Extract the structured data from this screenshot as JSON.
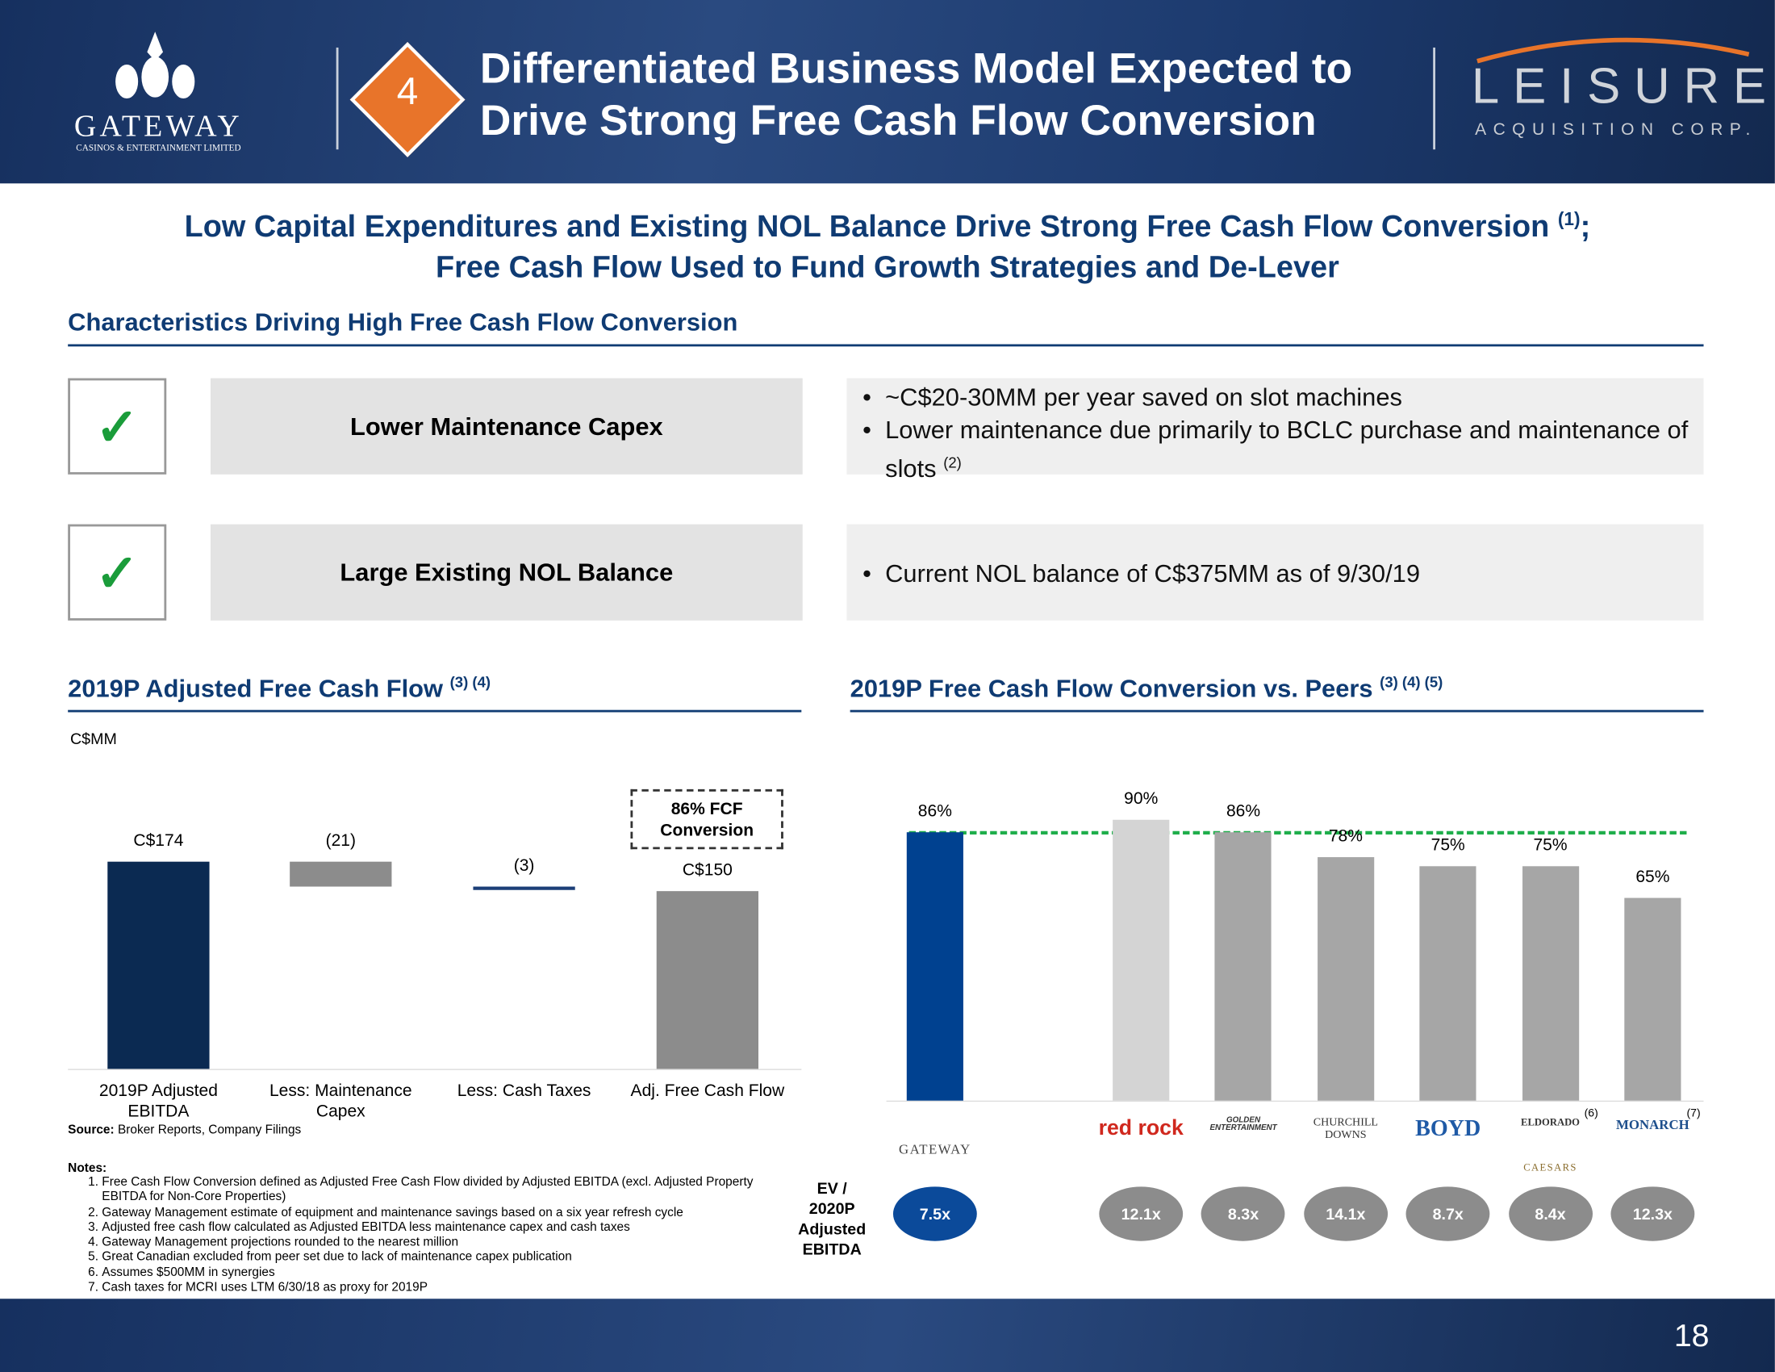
{
  "header": {
    "company": "GATEWAY",
    "company_tagline": "CASINOS & ENTERTAINMENT LIMITED",
    "section_number": "4",
    "title_line1": "Differentiated Business Model Expected to",
    "title_line2": "Drive Strong Free Cash Flow Conversion",
    "partner": "LEISURE",
    "partner_tagline": "ACQUISITION CORP."
  },
  "headline": {
    "line1": "Low Capital Expenditures and Existing NOL Balance Drive Strong Free Cash Flow Conversion",
    "line1_note": "(1)",
    "line1_end": ";",
    "line2": "Free Cash Flow Used to Fund Growth Strategies and De-Lever"
  },
  "characteristics": {
    "title": "Characteristics Driving High Free Cash Flow Conversion",
    "rows": [
      {
        "label": "Lower Maintenance Capex",
        "bullets": [
          "~C$20-30MM per year saved on slot machines",
          "Lower maintenance due primarily to BCLC purchase and maintenance of slots"
        ],
        "note": "(2)"
      },
      {
        "label": "Large Existing NOL Balance",
        "bullets": [
          "Current NOL balance of C$375MM as of 9/30/19"
        ]
      }
    ]
  },
  "chart_data": [
    {
      "type": "waterfall",
      "title": "2019P Adjusted Free Cash Flow",
      "title_note": "(3) (4)",
      "unit": "C$MM",
      "categories": [
        "2019P Adjusted EBITDA",
        "Less: Maintenance Capex",
        "Less: Cash Taxes",
        "Adj. Free Cash Flow"
      ],
      "values": [
        174,
        -21,
        -3,
        150
      ],
      "value_labels": [
        "C$174",
        "(21)",
        "(3)",
        "C$150"
      ],
      "colors": [
        "#0b2a52",
        "#8c8c8c",
        "#1c3f78",
        "#8c8c8c"
      ],
      "annotation": "86% FCF Conversion"
    },
    {
      "type": "bar",
      "title": "2019P Free Cash Flow Conversion vs. Peers",
      "title_note": "(3) (4) (5)",
      "categories": [
        "GATEWAY",
        "red rock",
        "GOLDEN ENTERTAINMENT",
        "CHURCHILL DOWNS",
        "BOYD",
        "ELDORADO",
        "MONARCH"
      ],
      "category_notes": [
        null,
        null,
        null,
        null,
        null,
        "(6)",
        "(7)"
      ],
      "partner_logo": "CAESARS",
      "values": [
        86,
        90,
        86,
        78,
        75,
        75,
        65
      ],
      "value_labels": [
        "86%",
        "90%",
        "86%",
        "78%",
        "75%",
        "75%",
        "65%"
      ],
      "colors": [
        "#004190",
        "#d4d4d4",
        "#a6a6a6",
        "#a6a6a6",
        "#a6a6a6",
        "#a6a6a6",
        "#a6a6a6"
      ],
      "reference_line": 86,
      "reference_color": "#1fae4b",
      "multiple_title": "EV / 2020P Adjusted EBITDA",
      "multiples": [
        "7.5x",
        "12.1x",
        "8.3x",
        "14.1x",
        "8.7x",
        "8.4x",
        "12.3x"
      ],
      "multiple_colors": [
        "#0b4a9a",
        "#8c8c8c",
        "#8c8c8c",
        "#8c8c8c",
        "#8c8c8c",
        "#8c8c8c",
        "#8c8c8c"
      ]
    }
  ],
  "source": {
    "label": "Source:",
    "text": "Broker Reports, Company Filings"
  },
  "notes": {
    "title": "Notes:",
    "items": [
      "Free Cash Flow Conversion defined as Adjusted Free Cash Flow divided by Adjusted EBITDA (excl. Adjusted Property EBITDA for Non-Core Properties)",
      "Gateway Management estimate of equipment and maintenance savings based on a six year refresh cycle",
      "Adjusted free cash flow calculated as Adjusted EBITDA less maintenance capex and cash taxes",
      "Gateway Management projections rounded to the nearest million",
      "Great Canadian excluded from peer set due to lack of maintenance capex publication",
      "Assumes $500MM in synergies",
      "Cash taxes for MCRI uses LTM 6/30/18 as proxy for 2019P"
    ]
  },
  "page_number": "18"
}
